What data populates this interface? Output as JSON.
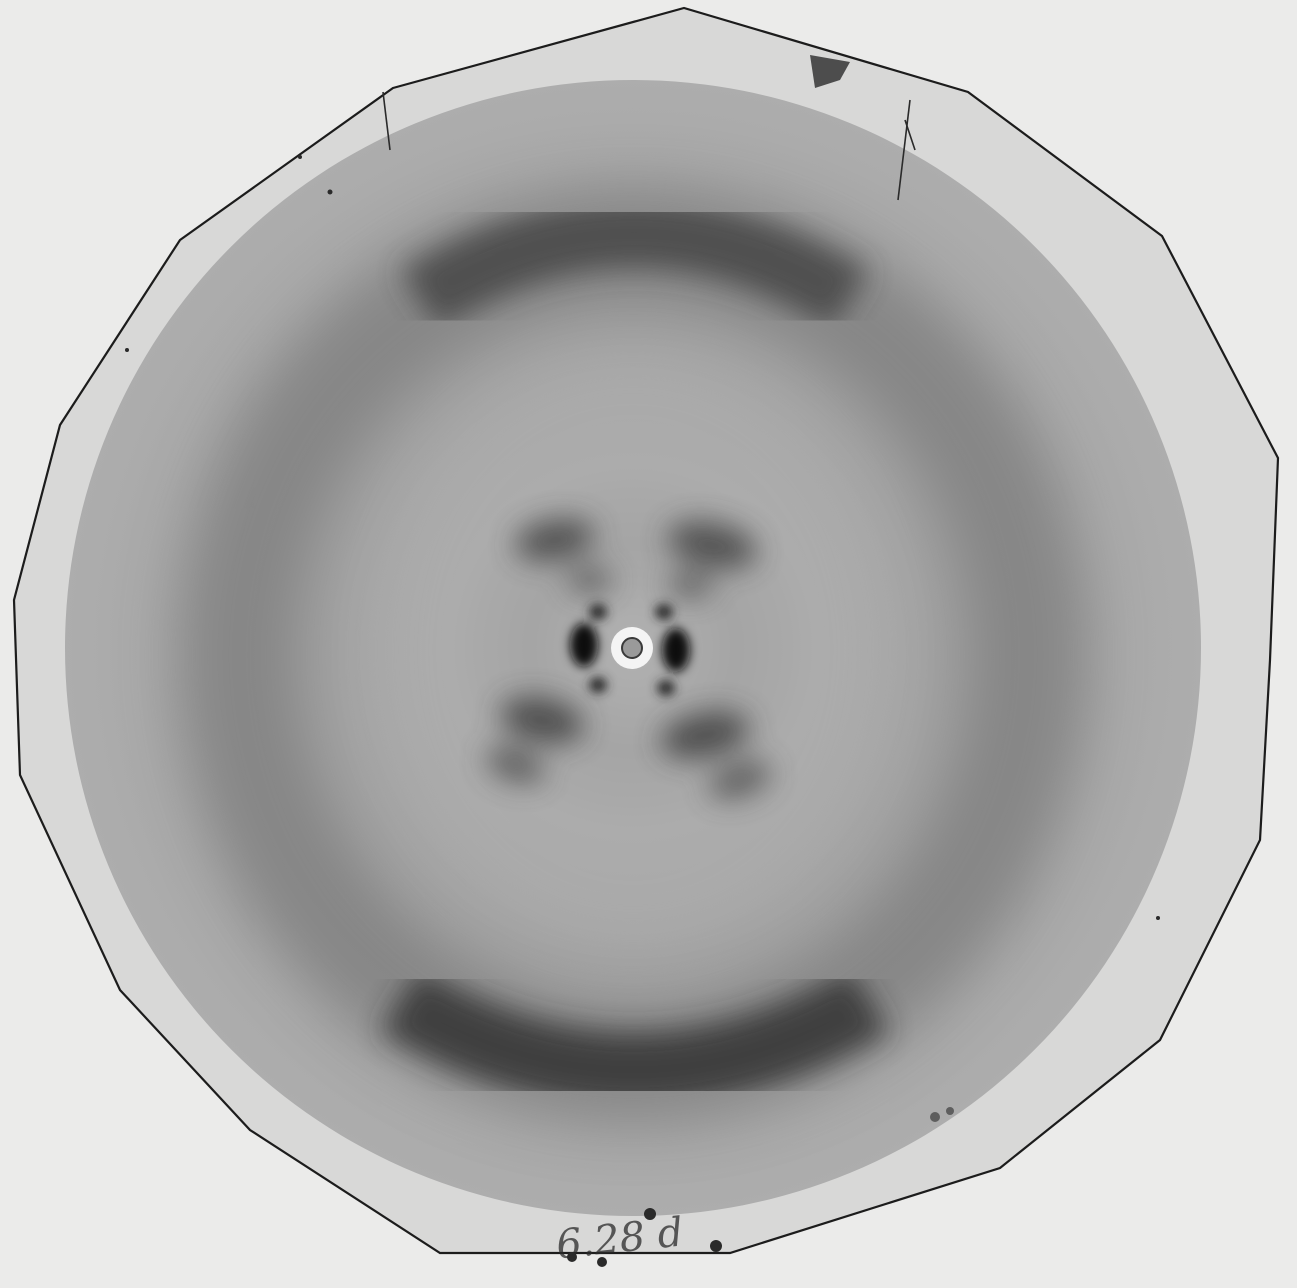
{
  "photo": {
    "handwritten_label": "6.28 d",
    "colors": {
      "background": "#ebebea",
      "plate": "#d9d9d8",
      "exposed_field": "#a6a6a6",
      "ring_dark": "#3a3a3a",
      "outline": "#1c1c1c"
    }
  }
}
